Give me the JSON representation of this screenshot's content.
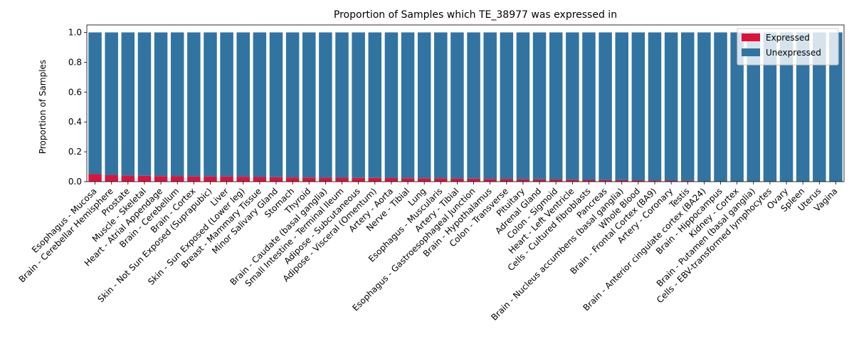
{
  "chart_data": {
    "type": "bar",
    "stacked": true,
    "title": "Proportion of Samples which TE_38977 was expressed in",
    "xlabel": "",
    "ylabel": "Proportion of Samples",
    "ylim": [
      0,
      1.05
    ],
    "yticks": [
      "0.0",
      "0.2",
      "0.4",
      "0.6",
      "0.8",
      "1.0"
    ],
    "legend_position": "top-right",
    "grid": false,
    "categories": [
      "Esophagus - Mucosa",
      "Brain - Cerebellar Hemisphere",
      "Prostate",
      "Muscle - Skeletal",
      "Heart - Atrial Appendage",
      "Brain - Cerebellum",
      "Brain - Cortex",
      "Skin - Not Sun Exposed (Suprapubic)",
      "Liver",
      "Skin - Sun Exposed (Lower leg)",
      "Breast - Mammary Tissue",
      "Minor Salivary Gland",
      "Stomach",
      "Thyroid",
      "Brain - Caudate (basal ganglia)",
      "Small Intestine - Terminal Ileum",
      "Adipose - Subcutaneous",
      "Adipose - Visceral (Omentum)",
      "Artery - Aorta",
      "Nerve - Tibial",
      "Lung",
      "Esophagus - Muscularis",
      "Artery - Tibial",
      "Esophagus - Gastroesophageal Junction",
      "Brain - Hypothalamus",
      "Colon - Transverse",
      "Pituitary",
      "Adrenal Gland",
      "Colon - Sigmoid",
      "Heart - Left Ventricle",
      "Cells - Cultured fibroblasts",
      "Pancreas",
      "Brain - Nucleus accumbens (basal ganglia)",
      "Whole Blood",
      "Brain - Frontal Cortex (BA9)",
      "Artery - Coronary",
      "Testis",
      "Brain - Anterior cingulate cortex (BA24)",
      "Brain - Hippocampus",
      "Kidney - Cortex",
      "Brain - Putamen (basal ganglia)",
      "Cells - EBV-transformed lymphocytes",
      "Ovary",
      "Spleen",
      "Uterus",
      "Vagina"
    ],
    "series": [
      {
        "name": "Expressed",
        "color": "#dc143c",
        "values": [
          0.05,
          0.043,
          0.04,
          0.039,
          0.037,
          0.036,
          0.035,
          0.034,
          0.034,
          0.033,
          0.031,
          0.03,
          0.028,
          0.027,
          0.026,
          0.026,
          0.025,
          0.025,
          0.024,
          0.023,
          0.022,
          0.022,
          0.021,
          0.02,
          0.018,
          0.017,
          0.016,
          0.015,
          0.014,
          0.013,
          0.012,
          0.011,
          0.01,
          0.009,
          0.008,
          0.007,
          0.006,
          0,
          0,
          0,
          0,
          0,
          0,
          0,
          0,
          0
        ]
      },
      {
        "name": "Unexpressed",
        "color": "#3274a1",
        "values": [
          0.95,
          0.957,
          0.96,
          0.961,
          0.963,
          0.964,
          0.965,
          0.966,
          0.966,
          0.967,
          0.969,
          0.97,
          0.972,
          0.973,
          0.974,
          0.974,
          0.975,
          0.975,
          0.976,
          0.977,
          0.978,
          0.978,
          0.979,
          0.98,
          0.982,
          0.983,
          0.984,
          0.985,
          0.986,
          0.987,
          0.988,
          0.989,
          0.99,
          0.991,
          0.992,
          0.993,
          0.994,
          1,
          1,
          1,
          1,
          1,
          1,
          1,
          1,
          1
        ]
      }
    ]
  }
}
